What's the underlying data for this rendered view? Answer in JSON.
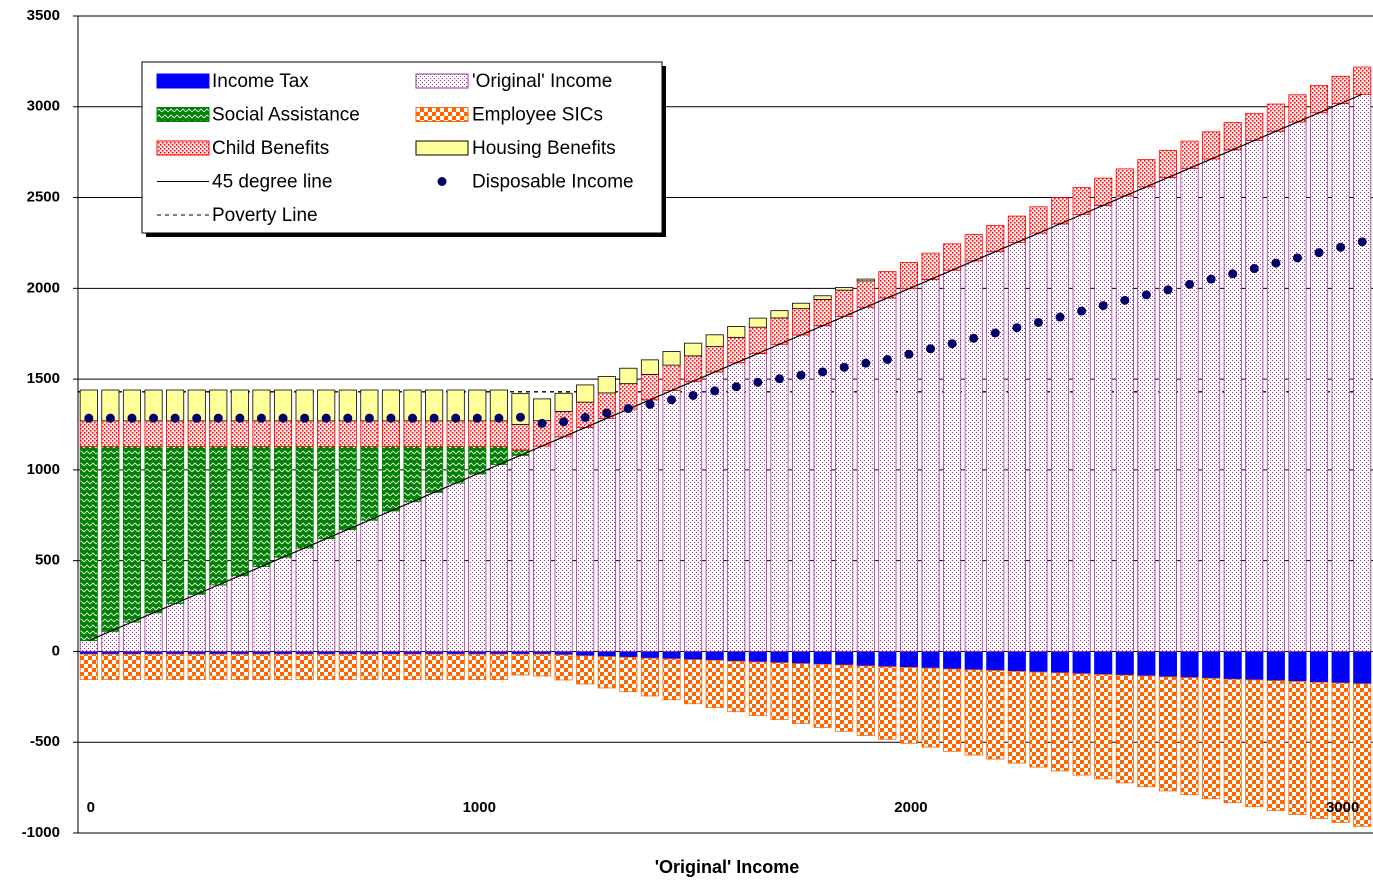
{
  "chart_data": {
    "type": "bar",
    "x_label": "'Original' Income",
    "ylim": [
      -1000,
      3500
    ],
    "yticks": [
      -1000,
      -500,
      0,
      500,
      1000,
      1500,
      2000,
      2500,
      3000,
      3500
    ],
    "grid": true,
    "categories": [
      "0",
      null,
      null,
      null,
      null,
      null,
      null,
      null,
      null,
      null,
      null,
      null,
      null,
      null,
      null,
      null,
      null,
      null,
      "1000",
      null,
      null,
      null,
      null,
      null,
      null,
      null,
      null,
      null,
      null,
      null,
      null,
      null,
      null,
      null,
      null,
      null,
      null,
      null,
      "2000",
      null,
      null,
      null,
      null,
      null,
      null,
      null,
      null,
      null,
      null,
      null,
      null,
      null,
      null,
      null,
      null,
      null,
      null,
      null,
      "3000",
      null
    ],
    "series": [
      {
        "name": "Income Tax",
        "type": "bar",
        "pattern": "solid",
        "color": "#0000ff",
        "values": [
          -15,
          -15,
          -15,
          -15,
          -15,
          -15,
          -15,
          -15,
          -15,
          -15,
          -15,
          -15,
          -15,
          -15,
          -15,
          -15,
          -15,
          -15,
          -15,
          -15,
          -15,
          -15,
          -19,
          -24,
          -28,
          -32,
          -37,
          -41,
          -45,
          -49,
          -54,
          -58,
          -62,
          -67,
          -71,
          -75,
          -80,
          -84,
          -88,
          -92,
          -97,
          -101,
          -105,
          -110,
          -114,
          -118,
          -123,
          -127,
          -131,
          -135,
          -140,
          -144,
          -148,
          -153,
          -157,
          -161,
          -165,
          -170,
          -174,
          -178
        ]
      },
      {
        "name": "'Original' Income",
        "type": "bar",
        "pattern": "dots",
        "color": "#993399",
        "values": [
          60,
          111,
          162,
          213,
          264,
          315,
          366,
          417,
          468,
          519,
          570,
          621,
          672,
          723,
          774,
          825,
          876,
          927,
          978,
          1029,
          1080,
          1131,
          1182,
          1233,
          1284,
          1335,
          1386,
          1437,
          1488,
          1539,
          1590,
          1641,
          1692,
          1743,
          1794,
          1845,
          1896,
          1947,
          1998,
          2049,
          2100,
          2151,
          2202,
          2253,
          2304,
          2355,
          2406,
          2457,
          2508,
          2559,
          2610,
          2661,
          2712,
          2763,
          2814,
          2865,
          2916,
          2967,
          3018,
          3069
        ]
      },
      {
        "name": "Social Assistance",
        "type": "bar",
        "pattern": "zigzag",
        "color": "#008000",
        "values": [
          1070,
          1019,
          968,
          917,
          866,
          815,
          764,
          713,
          662,
          611,
          560,
          509,
          458,
          407,
          356,
          305,
          254,
          203,
          152,
          101,
          30,
          0,
          0,
          0,
          0,
          0,
          0,
          0,
          0,
          0,
          0,
          0,
          0,
          0,
          0,
          0,
          0,
          0,
          0,
          0,
          0,
          0,
          0,
          0,
          0,
          0,
          0,
          0,
          0,
          0,
          0,
          0,
          0,
          0,
          0,
          0,
          0,
          0,
          0,
          0
        ]
      },
      {
        "name": "Employee SICs",
        "type": "bar",
        "pattern": "checker",
        "color": "#ff6600",
        "values": [
          -140,
          -140,
          -140,
          -140,
          -140,
          -140,
          -140,
          -140,
          -140,
          -140,
          -140,
          -140,
          -140,
          -140,
          -140,
          -140,
          -140,
          -140,
          -140,
          -140,
          -115,
          -120,
          -138,
          -155,
          -173,
          -190,
          -208,
          -225,
          -243,
          -260,
          -278,
          -295,
          -313,
          -330,
          -348,
          -365,
          -383,
          -400,
          -418,
          -435,
          -453,
          -470,
          -488,
          -505,
          -523,
          -540,
          -558,
          -575,
          -593,
          -610,
          -628,
          -645,
          -663,
          -680,
          -698,
          -715,
          -733,
          -750,
          -768,
          -785
        ]
      },
      {
        "name": "Child Benefits",
        "type": "bar",
        "pattern": "dense-dots",
        "color": "#ff0000",
        "values": [
          140,
          140,
          140,
          140,
          140,
          140,
          140,
          140,
          140,
          140,
          140,
          140,
          140,
          140,
          140,
          140,
          140,
          140,
          140,
          140,
          140,
          140,
          140,
          140,
          140,
          140,
          140,
          140,
          140,
          140,
          140,
          145,
          145,
          145,
          145,
          145,
          145,
          145,
          145,
          145,
          145,
          145,
          145,
          145,
          145,
          145,
          150,
          150,
          150,
          150,
          150,
          150,
          150,
          150,
          150,
          150,
          150,
          150,
          150,
          150
        ]
      },
      {
        "name": "Housing Benefits",
        "type": "bar",
        "pattern": "solid",
        "color": "#ffff99",
        "values": [
          170,
          170,
          170,
          170,
          170,
          170,
          170,
          170,
          170,
          170,
          170,
          170,
          170,
          170,
          170,
          170,
          170,
          170,
          170,
          170,
          170,
          120,
          100,
          95,
          90,
          85,
          80,
          75,
          70,
          65,
          60,
          50,
          40,
          30,
          20,
          15,
          10,
          0,
          0,
          0,
          0,
          0,
          0,
          0,
          0,
          0,
          0,
          0,
          0,
          0,
          0,
          0,
          0,
          0,
          0,
          0,
          0,
          0,
          0,
          0
        ]
      },
      {
        "name": "45 degree line",
        "type": "line",
        "color": "#000000",
        "values": [
          60,
          111,
          162,
          213,
          264,
          315,
          366,
          417,
          468,
          519,
          570,
          621,
          672,
          723,
          774,
          825,
          876,
          927,
          978,
          1029,
          1080,
          1131,
          1182,
          1233,
          1284,
          1335,
          1386,
          1437,
          1488,
          1539,
          1590,
          1641,
          1692,
          1743,
          1794,
          1845,
          1896,
          1947,
          1998,
          2049,
          2100,
          2151,
          2202,
          2253,
          2304,
          2355,
          2406,
          2457,
          2508,
          2559,
          2610,
          2661,
          2712,
          2763,
          2814,
          2865,
          2916,
          2967,
          3018,
          3069
        ]
      },
      {
        "name": "Disposable Income",
        "type": "scatter",
        "color": "#000066",
        "values": [
          1285,
          1285,
          1285,
          1285,
          1285,
          1285,
          1285,
          1285,
          1285,
          1285,
          1285,
          1285,
          1285,
          1285,
          1285,
          1285,
          1285,
          1285,
          1285,
          1285,
          1290,
          1256,
          1265,
          1289,
          1313,
          1338,
          1361,
          1386,
          1410,
          1435,
          1458,
          1483,
          1502,
          1521,
          1540,
          1565,
          1588,
          1608,
          1637,
          1667,
          1695,
          1725,
          1754,
          1783,
          1812,
          1842,
          1875,
          1905,
          1934,
          1964,
          1992,
          2022,
          2051,
          2080,
          2109,
          2139,
          2168,
          2197,
          2226,
          2256
        ]
      },
      {
        "name": "Poverty Line",
        "type": "hline",
        "color": "#000000",
        "value": 1430
      }
    ]
  }
}
